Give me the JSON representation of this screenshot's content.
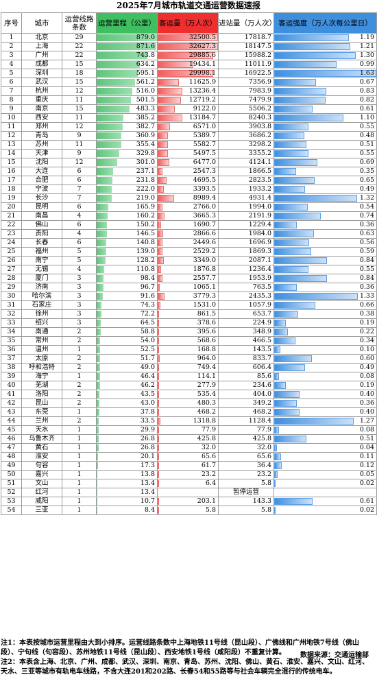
{
  "title": "2025年7月城市轨道交通运营数据速报",
  "headers": {
    "rank": "序号",
    "city": "城市",
    "lines": "运营线路条数",
    "mileage": "运营里程（公里）",
    "ridership": "客运量（万人次）",
    "entries": "进站量（万人次）",
    "intensity": "客运强度（万人次每公里日）"
  },
  "scale": {
    "mileage_max": 879.0,
    "ridership_max": 32627.3,
    "entries_max": 18147.5,
    "intensity_max": 1.63
  },
  "colors": {
    "green": "#5dc47a",
    "red": "#f25c5c",
    "blue": "#3d8fe0"
  },
  "rows": [
    {
      "rank": "1",
      "city": "北京",
      "lines": "29",
      "mileage": "879.0",
      "ridership": "32500.5",
      "entries": "17818.7",
      "intensity": "1.19"
    },
    {
      "rank": "2",
      "city": "上海",
      "lines": "22",
      "mileage": "871.6",
      "ridership": "32627.3",
      "entries": "18147.5",
      "intensity": "1.21"
    },
    {
      "rank": "3",
      "city": "广州",
      "lines": "22",
      "mileage": "743.8",
      "ridership": "29885.6",
      "entries": "15988.2",
      "intensity": "1.30"
    },
    {
      "rank": "4",
      "city": "成都",
      "lines": "15",
      "mileage": "634.2",
      "ridership": "19434.1",
      "entries": "11011.9",
      "intensity": "0.99"
    },
    {
      "rank": "5",
      "city": "深圳",
      "lines": "18",
      "mileage": "595.1",
      "ridership": "29998.1",
      "entries": "16922.5",
      "intensity": "1.63"
    },
    {
      "rank": "6",
      "city": "武汉",
      "lines": "15",
      "mileage": "561.2",
      "ridership": "11625.9",
      "entries": "7356.9",
      "intensity": "0.67"
    },
    {
      "rank": "7",
      "city": "杭州",
      "lines": "12",
      "mileage": "516.0",
      "ridership": "13236.4",
      "entries": "7983.9",
      "intensity": "0.83"
    },
    {
      "rank": "8",
      "city": "重庆",
      "lines": "11",
      "mileage": "501.5",
      "ridership": "12719.2",
      "entries": "7479.9",
      "intensity": "0.82"
    },
    {
      "rank": "9",
      "city": "南京",
      "lines": "15",
      "mileage": "483.3",
      "ridership": "9122.0",
      "entries": "5506.2",
      "intensity": "0.61"
    },
    {
      "rank": "10",
      "city": "西安",
      "lines": "11",
      "mileage": "385.2",
      "ridership": "13184.7",
      "entries": "8240.3",
      "intensity": "1.10"
    },
    {
      "rank": "11",
      "city": "郑州",
      "lines": "12",
      "mileage": "382.7",
      "ridership": "6571.0",
      "entries": "3903.8",
      "intensity": "0.55"
    },
    {
      "rank": "12",
      "city": "青岛",
      "lines": "9",
      "mileage": "360.9",
      "ridership": "5389.7",
      "entries": "3686.2",
      "intensity": "0.48"
    },
    {
      "rank": "13",
      "city": "苏州",
      "lines": "11",
      "mileage": "355.4",
      "ridership": "5582.7",
      "entries": "3298.2",
      "intensity": "0.51"
    },
    {
      "rank": "14",
      "city": "天津",
      "lines": "9",
      "mileage": "329.8",
      "ridership": "5497.5",
      "entries": "3355.2",
      "intensity": "0.55"
    },
    {
      "rank": "15",
      "city": "沈阳",
      "lines": "12",
      "mileage": "301.0",
      "ridership": "6477.0",
      "entries": "4124.1",
      "intensity": "0.69"
    },
    {
      "rank": "16",
      "city": "大连",
      "lines": "6",
      "mileage": "237.1",
      "ridership": "2547.3",
      "entries": "1866.5",
      "intensity": "0.35"
    },
    {
      "rank": "17",
      "city": "合肥",
      "lines": "6",
      "mileage": "231.8",
      "ridership": "4695.5",
      "entries": "2823.5",
      "intensity": "0.65"
    },
    {
      "rank": "18",
      "city": "宁波",
      "lines": "7",
      "mileage": "222.0",
      "ridership": "3393.5",
      "entries": "1933.2",
      "intensity": "0.49"
    },
    {
      "rank": "19",
      "city": "长沙",
      "lines": "7",
      "mileage": "219.0",
      "ridership": "8989.4",
      "entries": "4931.4",
      "intensity": "1.32"
    },
    {
      "rank": "20",
      "city": "昆明",
      "lines": "6",
      "mileage": "165.9",
      "ridership": "2766.0",
      "entries": "1994.0",
      "intensity": "0.54"
    },
    {
      "rank": "21",
      "city": "南昌",
      "lines": "4",
      "mileage": "160.2",
      "ridership": "3665.3",
      "entries": "2191.9",
      "intensity": "0.74"
    },
    {
      "rank": "22",
      "city": "佛山",
      "lines": "6",
      "mileage": "150.2",
      "ridership": "1690.7",
      "entries": "1229.4",
      "intensity": "0.36"
    },
    {
      "rank": "23",
      "city": "贵阳",
      "lines": "4",
      "mileage": "146.5",
      "ridership": "2866.6",
      "entries": "1984.0",
      "intensity": "0.63"
    },
    {
      "rank": "24",
      "city": "长春",
      "lines": "6",
      "mileage": "140.8",
      "ridership": "2449.6",
      "entries": "1696.9",
      "intensity": "0.56"
    },
    {
      "rank": "25",
      "city": "福州",
      "lines": "5",
      "mileage": "139.0",
      "ridership": "2529.2",
      "entries": "1869.3",
      "intensity": "0.59"
    },
    {
      "rank": "26",
      "city": "南宁",
      "lines": "5",
      "mileage": "128.2",
      "ridership": "3349.0",
      "entries": "2087.1",
      "intensity": "0.84"
    },
    {
      "rank": "27",
      "city": "无锡",
      "lines": "4",
      "mileage": "110.8",
      "ridership": "1876.8",
      "entries": "1236.4",
      "intensity": "0.55"
    },
    {
      "rank": "28",
      "city": "厦门",
      "lines": "3",
      "mileage": "98.4",
      "ridership": "2557.7",
      "entries": "1953.9",
      "intensity": "0.84"
    },
    {
      "rank": "29",
      "city": "济南",
      "lines": "3",
      "mileage": "96.7",
      "ridership": "1065.1",
      "entries": "763.5",
      "intensity": "0.36"
    },
    {
      "rank": "30",
      "city": "哈尔滨",
      "lines": "3",
      "mileage": "91.6",
      "ridership": "3779.3",
      "entries": "2435.3",
      "intensity": "1.33"
    },
    {
      "rank": "31",
      "city": "石家庄",
      "lines": "3",
      "mileage": "74.3",
      "ridership": "1531.0",
      "entries": "1057.9",
      "intensity": "0.66"
    },
    {
      "rank": "32",
      "city": "徐州",
      "lines": "3",
      "mileage": "72.2",
      "ridership": "861.5",
      "entries": "653.7",
      "intensity": "0.38"
    },
    {
      "rank": "33",
      "city": "绍兴",
      "lines": "3",
      "mileage": "64.5",
      "ridership": "378.6",
      "entries": "224.9",
      "intensity": "0.19"
    },
    {
      "rank": "34",
      "city": "南通",
      "lines": "2",
      "mileage": "58.8",
      "ridership": "395.6",
      "entries": "348.9",
      "intensity": "0.22"
    },
    {
      "rank": "35",
      "city": "常州",
      "lines": "2",
      "mileage": "54.0",
      "ridership": "568.6",
      "entries": "466.5",
      "intensity": "0.34"
    },
    {
      "rank": "36",
      "city": "温州",
      "lines": "1",
      "mileage": "52.5",
      "ridership": "168.8",
      "entries": "143.5",
      "intensity": "0.10"
    },
    {
      "rank": "37",
      "city": "太原",
      "lines": "2",
      "mileage": "51.7",
      "ridership": "964.0",
      "entries": "833.7",
      "intensity": "0.60"
    },
    {
      "rank": "38",
      "city": "呼和浩特",
      "lines": "2",
      "mileage": "49.0",
      "ridership": "749.4",
      "entries": "606.4",
      "intensity": "0.49"
    },
    {
      "rank": "39",
      "city": "海宁",
      "lines": "1",
      "mileage": "46.4",
      "ridership": "114.1",
      "entries": "85.6",
      "intensity": "0.08"
    },
    {
      "rank": "40",
      "city": "芜湖",
      "lines": "2",
      "mileage": "46.2",
      "ridership": "277.9",
      "entries": "234.6",
      "intensity": "0.19"
    },
    {
      "rank": "41",
      "city": "洛阳",
      "lines": "2",
      "mileage": "43.5",
      "ridership": "535.4",
      "entries": "404.0",
      "intensity": "0.40"
    },
    {
      "rank": "42",
      "city": "昆山",
      "lines": "2",
      "mileage": "43.0",
      "ridership": "480.3",
      "entries": "349.2",
      "intensity": "0.36"
    },
    {
      "rank": "43",
      "city": "东莞",
      "lines": "1",
      "mileage": "37.8",
      "ridership": "468.2",
      "entries": "468.2",
      "intensity": "0.40"
    },
    {
      "rank": "44",
      "city": "兰州",
      "lines": "2",
      "mileage": "33.5",
      "ridership": "1318.8",
      "entries": "1128.4",
      "intensity": "1.27"
    },
    {
      "rank": "45",
      "city": "天水",
      "lines": "1",
      "mileage": "29.9",
      "ridership": "77.9",
      "entries": "77.9",
      "intensity": "0.08"
    },
    {
      "rank": "46",
      "city": "乌鲁木齐",
      "lines": "1",
      "mileage": "26.8",
      "ridership": "425.8",
      "entries": "425.8",
      "intensity": "0.51"
    },
    {
      "rank": "47",
      "city": "黄石",
      "lines": "1",
      "mileage": "26.8",
      "ridership": "32.0",
      "entries": "32.0",
      "intensity": "0.04"
    },
    {
      "rank": "48",
      "city": "淮安",
      "lines": "1",
      "mileage": "20.1",
      "ridership": "65.6",
      "entries": "65.6",
      "intensity": "0.11"
    },
    {
      "rank": "49",
      "city": "句容",
      "lines": "1",
      "mileage": "17.3",
      "ridership": "61.7",
      "entries": "36.4",
      "intensity": "0.12"
    },
    {
      "rank": "50",
      "city": "嘉兴",
      "lines": "1",
      "mileage": "13.8",
      "ridership": "23.2",
      "entries": "23.2",
      "intensity": "0.05"
    },
    {
      "rank": "51",
      "city": "文山",
      "lines": "1",
      "mileage": "13.4",
      "ridership": "6.4",
      "entries": "5.8",
      "intensity": "0.02"
    },
    {
      "rank": "52",
      "city": "红河",
      "lines": "1",
      "mileage": "13.4",
      "ridership": "",
      "entries": "",
      "intensity": "",
      "note": "暂停运营"
    },
    {
      "rank": "53",
      "city": "咸阳",
      "lines": "1",
      "mileage": "10.7",
      "ridership": "203.1",
      "entries": "143.3",
      "intensity": "0.61"
    },
    {
      "rank": "54",
      "city": "三亚",
      "lines": "1",
      "mileage": "8.4",
      "ridership": "5.8",
      "entries": "5.8",
      "intensity": "0.02"
    }
  ],
  "notes": [
    "注1：本表按城市运营里程由大到小排序。运营线路条数中上海地铁11号线（昆山段）、广佛线和广州地铁7号线（佛山段）、宁句线（句容段）、苏州地铁11号线（昆山段）、西安地铁1号线（咸阳段）不重复计算。",
    "注2：本表含上海、北京、广州、成都、武汉、深圳、南京、青岛、苏州、沈阳、佛山、黄石、淮安、嘉兴、文山、红河、天水、三亚等城市有轨电车线路，不含大连201和202路、长春54和55路等与社会车辆完全混行的传统电车。"
  ],
  "source": "数据来源：交通运输部"
}
